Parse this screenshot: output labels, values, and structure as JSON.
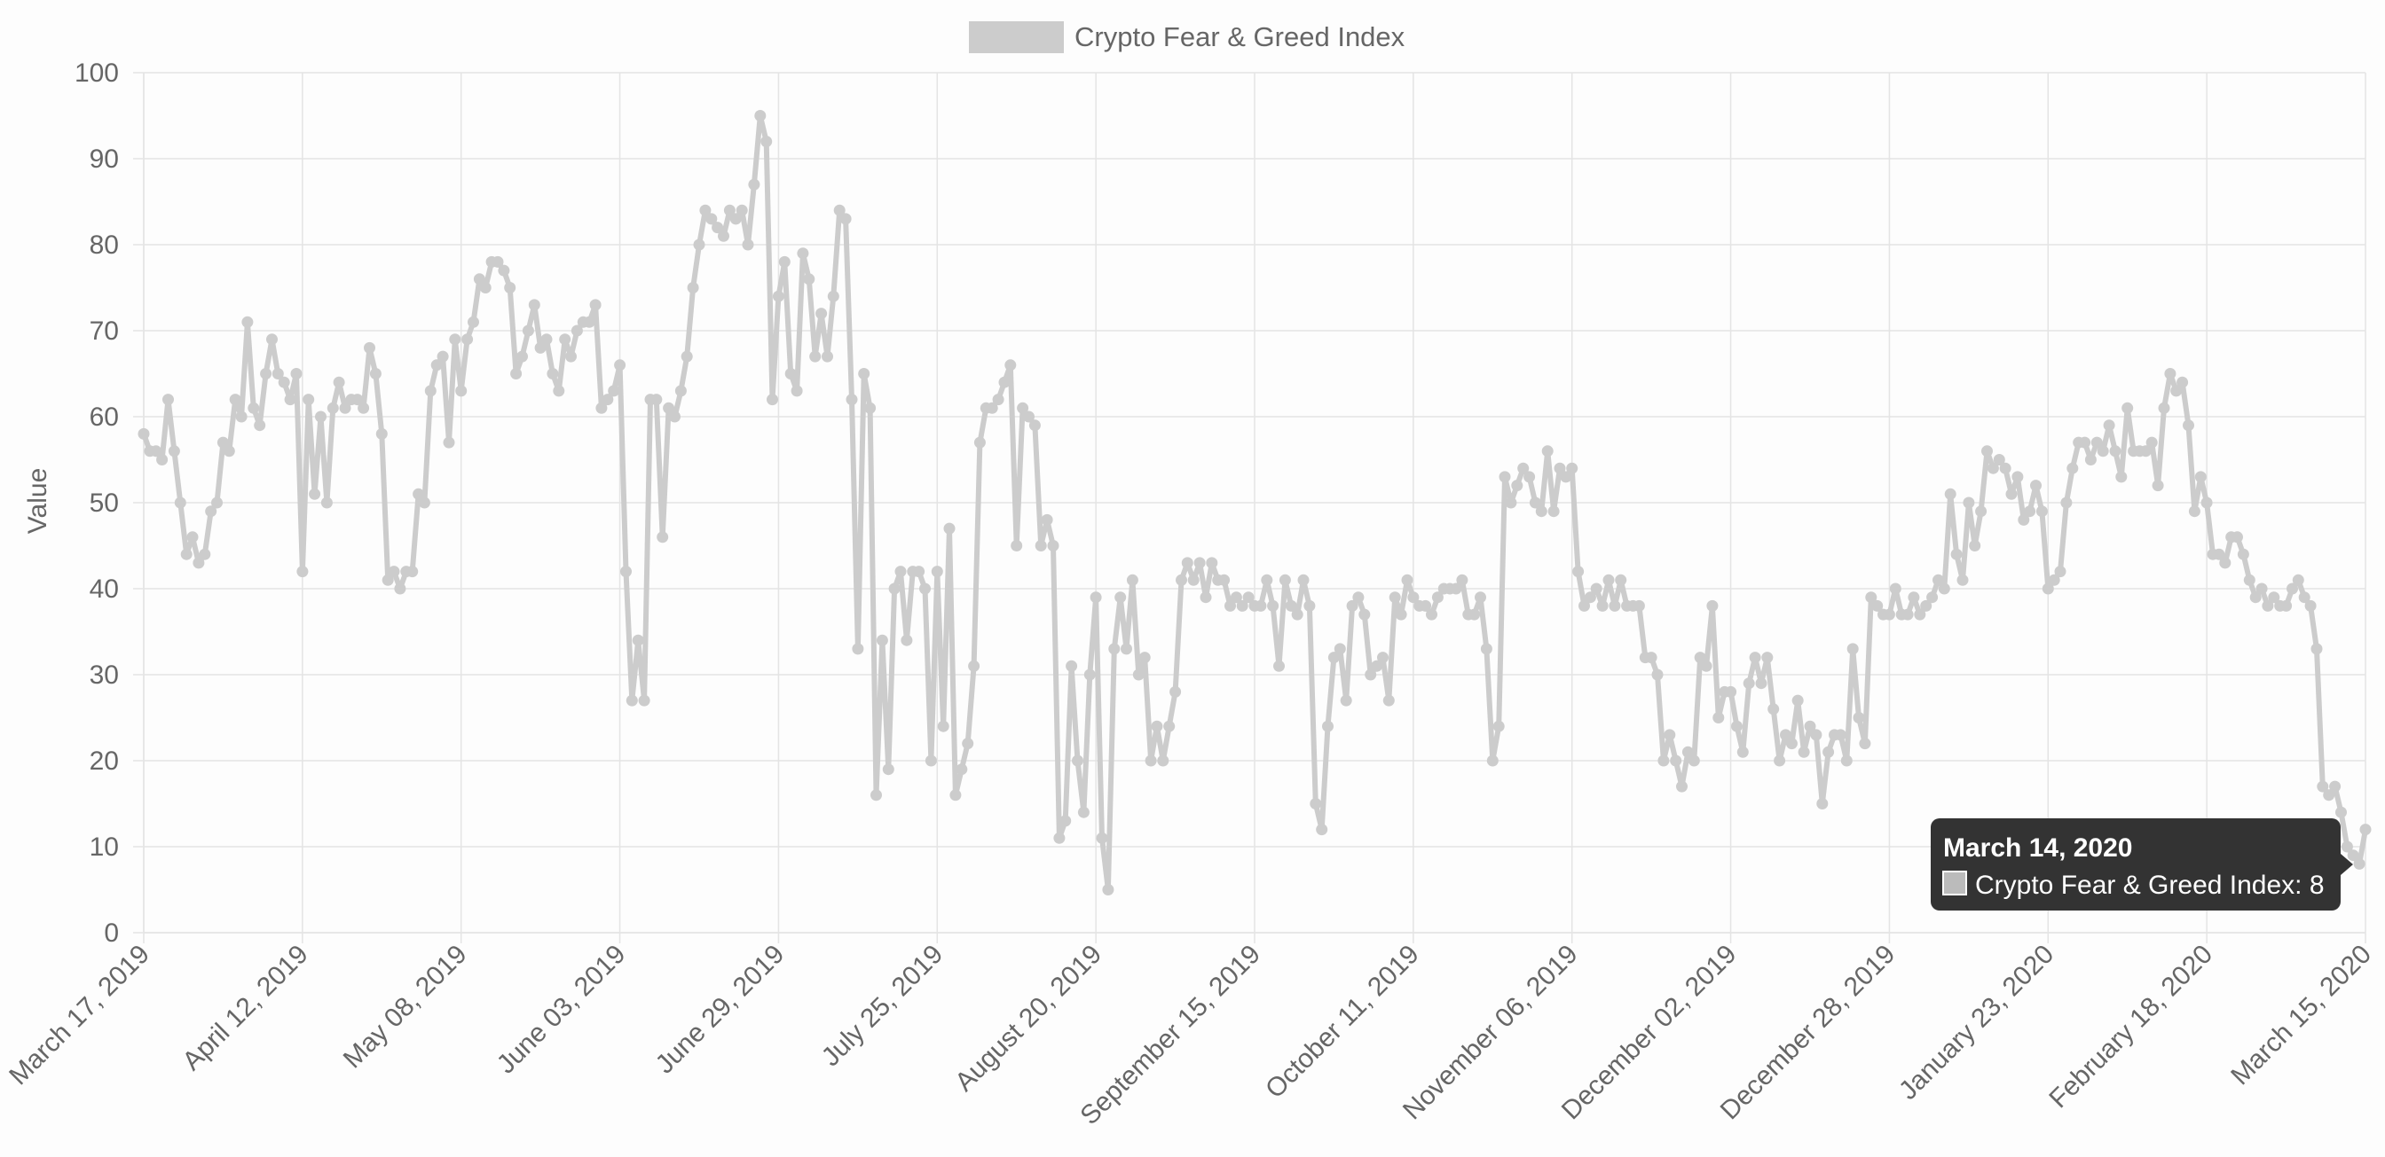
{
  "chart_data": {
    "type": "line",
    "legend": {
      "label": "Crypto Fear & Greed Index",
      "position": "top"
    },
    "ylabel": "Value",
    "ylim": [
      0,
      100
    ],
    "yticks": [
      0,
      10,
      20,
      30,
      40,
      50,
      60,
      70,
      80,
      90,
      100
    ],
    "grid": true,
    "x_range": [
      "2019-03-17",
      "2020-03-15"
    ],
    "x_ticks": [
      {
        "date": "2019-03-17",
        "label": "March 17, 2019"
      },
      {
        "date": "2019-04-12",
        "label": "April 12, 2019"
      },
      {
        "date": "2019-05-08",
        "label": "May 08, 2019"
      },
      {
        "date": "2019-06-03",
        "label": "June 03, 2019"
      },
      {
        "date": "2019-06-29",
        "label": "June 29, 2019"
      },
      {
        "date": "2019-07-25",
        "label": "July 25, 2019"
      },
      {
        "date": "2019-08-20",
        "label": "August 20, 2019"
      },
      {
        "date": "2019-09-15",
        "label": "September 15, 2019"
      },
      {
        "date": "2019-10-11",
        "label": "October 11, 2019"
      },
      {
        "date": "2019-11-06",
        "label": "November 06, 2019"
      },
      {
        "date": "2019-12-02",
        "label": "December 02, 2019"
      },
      {
        "date": "2019-12-28",
        "label": "December 28, 2019"
      },
      {
        "date": "2020-01-23",
        "label": "January 23, 2020"
      },
      {
        "date": "2020-02-18",
        "label": "February 18, 2020"
      },
      {
        "date": "2020-03-15",
        "label": "March 15, 2020"
      }
    ],
    "series": [
      {
        "name": "Crypto Fear & Greed Index",
        "color": "#cccccc",
        "start_date": "2019-03-17",
        "values": [
          58,
          56,
          56,
          55,
          62,
          56,
          50,
          44,
          46,
          43,
          44,
          49,
          50,
          57,
          56,
          62,
          60,
          71,
          61,
          59,
          65,
          69,
          65,
          64,
          62,
          65,
          42,
          62,
          51,
          60,
          50,
          61,
          64,
          61,
          62,
          62,
          61,
          68,
          65,
          58,
          41,
          42,
          40,
          42,
          42,
          51,
          50,
          63,
          66,
          67,
          57,
          69,
          63,
          69,
          71,
          76,
          75,
          78,
          78,
          77,
          75,
          65,
          67,
          70,
          73,
          68,
          69,
          65,
          63,
          69,
          67,
          70,
          71,
          71,
          73,
          61,
          62,
          63,
          66,
          42,
          27,
          34,
          27,
          62,
          62,
          46,
          61,
          60,
          63,
          67,
          75,
          80,
          84,
          83,
          82,
          81,
          84,
          83,
          84,
          80,
          87,
          95,
          92,
          62,
          74,
          78,
          65,
          63,
          79,
          76,
          67,
          72,
          67,
          74,
          84,
          83,
          62,
          33,
          65,
          61,
          16,
          34,
          19,
          40,
          42,
          34,
          42,
          42,
          40,
          20,
          42,
          24,
          47,
          16,
          19,
          22,
          31,
          57,
          61,
          61,
          62,
          64,
          66,
          45,
          61,
          60,
          59,
          45,
          48,
          45,
          11,
          13,
          31,
          20,
          14,
          30,
          39,
          11,
          5,
          33,
          39,
          33,
          41,
          30,
          32,
          20,
          24,
          20,
          24,
          28,
          41,
          43,
          41,
          43,
          39,
          43,
          41,
          41,
          38,
          39,
          38,
          39,
          38,
          38,
          41,
          38,
          31,
          41,
          38,
          37,
          41,
          38,
          15,
          12,
          24,
          32,
          33,
          27,
          38,
          39,
          37,
          30,
          31,
          32,
          27,
          39,
          37,
          41,
          39,
          38,
          38,
          37,
          39,
          40,
          40,
          40,
          41,
          37,
          37,
          39,
          33,
          20,
          24,
          53,
          50,
          52,
          54,
          53,
          50,
          49,
          56,
          49,
          54,
          53,
          54,
          42,
          38,
          39,
          40,
          38,
          41,
          38,
          41,
          38,
          38,
          38,
          32,
          32,
          30,
          20,
          23,
          20,
          17,
          21,
          20,
          32,
          31,
          38,
          25,
          28,
          28,
          24,
          21,
          29,
          32,
          29,
          32,
          26,
          20,
          23,
          22,
          27,
          21,
          24,
          23,
          15,
          21,
          23,
          23,
          20,
          33,
          25,
          22,
          39,
          38,
          37,
          37,
          40,
          37,
          37,
          39,
          37,
          38,
          39,
          41,
          40,
          51,
          44,
          41,
          50,
          45,
          49,
          56,
          54,
          55,
          54,
          51,
          53,
          48,
          49,
          52,
          49,
          40,
          41,
          42,
          50,
          54,
          57,
          57,
          55,
          57,
          56,
          59,
          56,
          53,
          61,
          56,
          56,
          56,
          57,
          52,
          61,
          65,
          63,
          64,
          59,
          49,
          53,
          50,
          44,
          44,
          43,
          46,
          46,
          44,
          41,
          39,
          40,
          38,
          39,
          38,
          38,
          40,
          41,
          39,
          38,
          33,
          17,
          16,
          17,
          14,
          10,
          9,
          8,
          12
        ]
      }
    ],
    "tooltip": {
      "title": "March 14, 2020",
      "label": "Crypto Fear & Greed Index: 8",
      "background": "#333333"
    }
  }
}
